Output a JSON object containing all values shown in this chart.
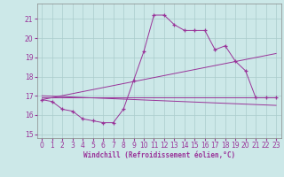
{
  "background_color": "#cce8e8",
  "grid_color": "#aacccc",
  "line_color": "#993399",
  "marker": "+",
  "xlim": [
    -0.5,
    23.5
  ],
  "ylim": [
    14.8,
    21.8
  ],
  "yticks": [
    15,
    16,
    17,
    18,
    19,
    20,
    21
  ],
  "xticks": [
    0,
    1,
    2,
    3,
    4,
    5,
    6,
    7,
    8,
    9,
    10,
    11,
    12,
    13,
    14,
    15,
    16,
    17,
    18,
    19,
    20,
    21,
    22,
    23
  ],
  "xlabel": "Windchill (Refroidissement éolien,°C)",
  "series1_x": [
    0,
    1,
    2,
    3,
    4,
    5,
    6,
    7,
    8,
    9,
    10,
    11,
    12,
    13,
    14,
    15,
    16,
    17,
    18,
    19,
    20,
    21,
    22,
    23
  ],
  "series1_y": [
    16.8,
    16.7,
    16.3,
    16.2,
    15.8,
    15.7,
    15.6,
    15.6,
    16.3,
    17.8,
    19.3,
    21.2,
    21.2,
    20.7,
    20.4,
    20.4,
    20.4,
    19.4,
    19.6,
    18.8,
    18.3,
    16.9,
    16.9,
    16.9
  ],
  "line1_x": [
    0,
    23
  ],
  "line1_y": [
    16.9,
    16.9
  ],
  "line2_x": [
    0,
    23
  ],
  "line2_y": [
    16.8,
    19.2
  ],
  "line3_x": [
    0,
    23
  ],
  "line3_y": [
    17.0,
    16.5
  ]
}
